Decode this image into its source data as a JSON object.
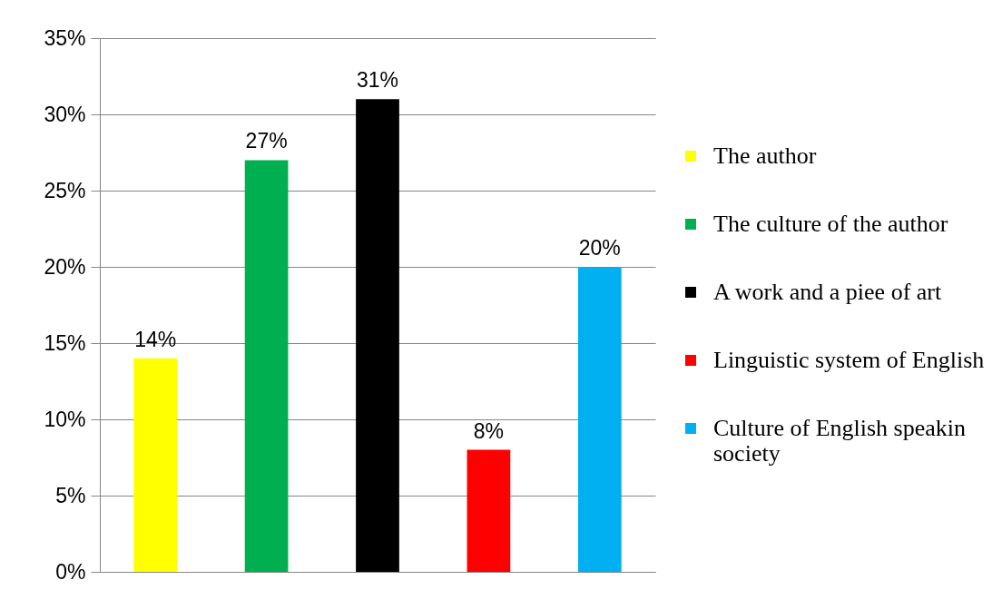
{
  "chart_data": {
    "type": "bar",
    "categories": [
      null
    ],
    "series": [
      {
        "name": "The author",
        "color": "#ffff00",
        "values": [
          14
        ],
        "value_labels": [
          "14%"
        ]
      },
      {
        "name": "The culture of the author",
        "color": "#00b050",
        "values": [
          27
        ],
        "value_labels": [
          "27%"
        ]
      },
      {
        "name": "A work and a piee of art",
        "color": "#000000",
        "values": [
          31
        ],
        "value_labels": [
          "31%"
        ]
      },
      {
        "name": "Linguistic system of English",
        "color": "#ff0000",
        "values": [
          8
        ],
        "value_labels": [
          "8%"
        ]
      },
      {
        "name": "Culture of English speakin society",
        "color": "#00b0f0",
        "values": [
          20
        ],
        "value_labels": [
          "20%"
        ]
      }
    ],
    "ylim": [
      0,
      35
    ],
    "yticks": [
      {
        "value": 0,
        "label": "0%"
      },
      {
        "value": 5,
        "label": "5%"
      },
      {
        "value": 10,
        "label": "10%"
      },
      {
        "value": 15,
        "label": "15%"
      },
      {
        "value": 20,
        "label": "20%"
      },
      {
        "value": 25,
        "label": "25%"
      },
      {
        "value": 30,
        "label": "30%"
      },
      {
        "value": 35,
        "label": "35%"
      }
    ],
    "grid": "y",
    "legend": "right",
    "tick_labels": "y"
  }
}
